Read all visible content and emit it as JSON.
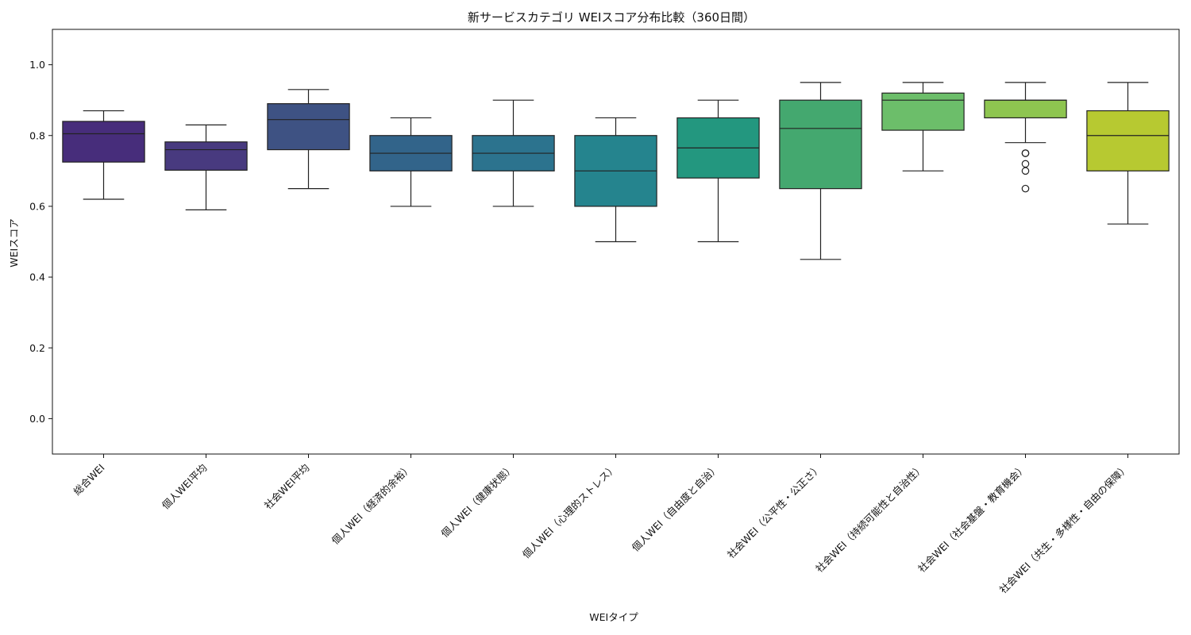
{
  "chart_data": {
    "type": "box",
    "title": "新サービスカテゴリ WEIスコア分布比較（360日間）",
    "xlabel": "WEIタイプ",
    "ylabel": "WEIスコア",
    "ylim": [
      -0.1,
      1.1
    ],
    "yticks": [
      0.0,
      0.2,
      0.4,
      0.6,
      0.8,
      1.0
    ],
    "ytick_labels": [
      "0.0",
      "0.2",
      "0.4",
      "0.6",
      "0.8",
      "1.0"
    ],
    "grid": false,
    "legend": "none",
    "categories": [
      "総合WEI",
      "個人WEI平均",
      "社会WEI平均",
      "個人WEI（経済的余裕）",
      "個人WEI（健康状態）",
      "個人WEI（心理的ストレス）",
      "個人WEI（自由度と自治）",
      "社会WEI（公平性・公正さ）",
      "社会WEI（持続可能性と自治性）",
      "社会WEI（社会基盤・教育機会）",
      "社会WEI（共生・多様性・自由の保障）"
    ],
    "boxes": [
      {
        "whisker_low": 0.62,
        "q1": 0.725,
        "median": 0.805,
        "q3": 0.84,
        "whisker_high": 0.87,
        "outliers": [],
        "color": "#472d7b"
      },
      {
        "whisker_low": 0.59,
        "q1": 0.702,
        "median": 0.76,
        "q3": 0.782,
        "whisker_high": 0.83,
        "outliers": [],
        "color": "#483a7f"
      },
      {
        "whisker_low": 0.65,
        "q1": 0.76,
        "median": 0.845,
        "q3": 0.89,
        "whisker_high": 0.93,
        "outliers": [],
        "color": "#3e5283"
      },
      {
        "whisker_low": 0.6,
        "q1": 0.7,
        "median": 0.75,
        "q3": 0.8,
        "whisker_high": 0.85,
        "outliers": [],
        "color": "#32648a"
      },
      {
        "whisker_low": 0.6,
        "q1": 0.7,
        "median": 0.75,
        "q3": 0.8,
        "whisker_high": 0.9,
        "outliers": [],
        "color": "#2c738e"
      },
      {
        "whisker_low": 0.5,
        "q1": 0.6,
        "median": 0.7,
        "q3": 0.8,
        "whisker_high": 0.85,
        "outliers": [],
        "color": "#25848e"
      },
      {
        "whisker_low": 0.5,
        "q1": 0.68,
        "median": 0.765,
        "q3": 0.85,
        "whisker_high": 0.9,
        "outliers": [],
        "color": "#23977f"
      },
      {
        "whisker_low": 0.45,
        "q1": 0.65,
        "median": 0.82,
        "q3": 0.9,
        "whisker_high": 0.95,
        "outliers": [],
        "color": "#44a86f"
      },
      {
        "whisker_low": 0.7,
        "q1": 0.815,
        "median": 0.9,
        "q3": 0.92,
        "whisker_high": 0.95,
        "outliers": [],
        "color": "#6cbe6a"
      },
      {
        "whisker_low": 0.78,
        "q1": 0.85,
        "median": 0.9,
        "q3": 0.9,
        "whisker_high": 0.95,
        "outliers": [
          0.75,
          0.75,
          0.72,
          0.7,
          0.65
        ],
        "color": "#8ec550"
      },
      {
        "whisker_low": 0.55,
        "q1": 0.7,
        "median": 0.8,
        "q3": 0.87,
        "whisker_high": 0.95,
        "outliers": [],
        "color": "#b7c931"
      }
    ]
  }
}
